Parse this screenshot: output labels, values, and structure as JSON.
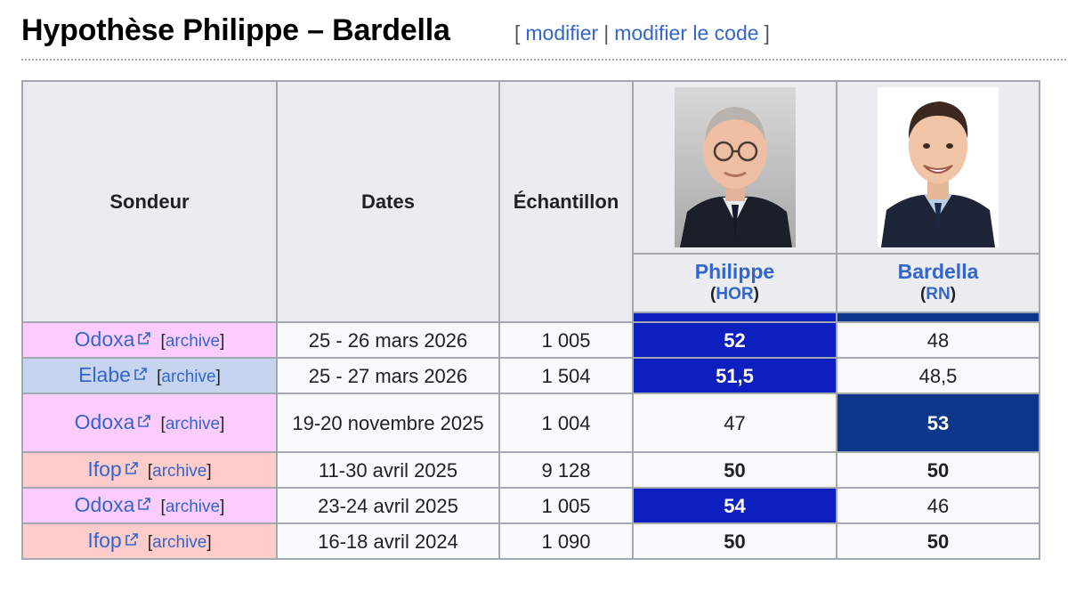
{
  "section": {
    "title": "Hypothèse Philippe – Bardella",
    "edit_open": "[",
    "edit_label": "modifier",
    "edit_sep": "|",
    "edit_code_label": "modifier le code",
    "edit_close": "]"
  },
  "table": {
    "headers": {
      "pollster": "Sondeur",
      "dates": "Dates",
      "sample": "Échantillon"
    },
    "candidates": [
      {
        "name": "Philippe",
        "party": "HOR",
        "color": "#0d1fbf",
        "photo": "portrait-photo-philippe"
      },
      {
        "name": "Bardella",
        "party": "RN",
        "color": "#0d378a",
        "photo": "portrait-photo-bardella"
      }
    ],
    "archive_label": "archive",
    "rows": [
      {
        "pollster": "Odoxa",
        "color": "#ffccff",
        "dates": "25 - 26 mars 2026",
        "sample": "1 005",
        "philippe": "52",
        "bardella": "48",
        "winner": "philippe"
      },
      {
        "pollster": "Elabe",
        "color": "#c6d4f0",
        "dates": "25 - 27 mars 2026",
        "sample": "1 504",
        "philippe": "51,5",
        "bardella": "48,5",
        "winner": "philippe"
      },
      {
        "pollster": "Odoxa",
        "color": "#ffccff",
        "dates": "19-20 novembre 2025",
        "sample": "1 004",
        "philippe": "47",
        "bardella": "53",
        "winner": "bardella"
      },
      {
        "pollster": "Ifop",
        "color": "#ffcccc",
        "dates": "11-30 avril 2025",
        "sample": "9 128",
        "philippe": "50",
        "bardella": "50",
        "winner": "tie"
      },
      {
        "pollster": "Odoxa",
        "color": "#ffccff",
        "dates": "23-24 avril 2025",
        "sample": "1 005",
        "philippe": "54",
        "bardella": "46",
        "winner": "philippe"
      },
      {
        "pollster": "Ifop",
        "color": "#ffcccc",
        "dates": "16-18 avril 2024",
        "sample": "1 090",
        "philippe": "50",
        "bardella": "50",
        "winner": "tie"
      }
    ]
  }
}
